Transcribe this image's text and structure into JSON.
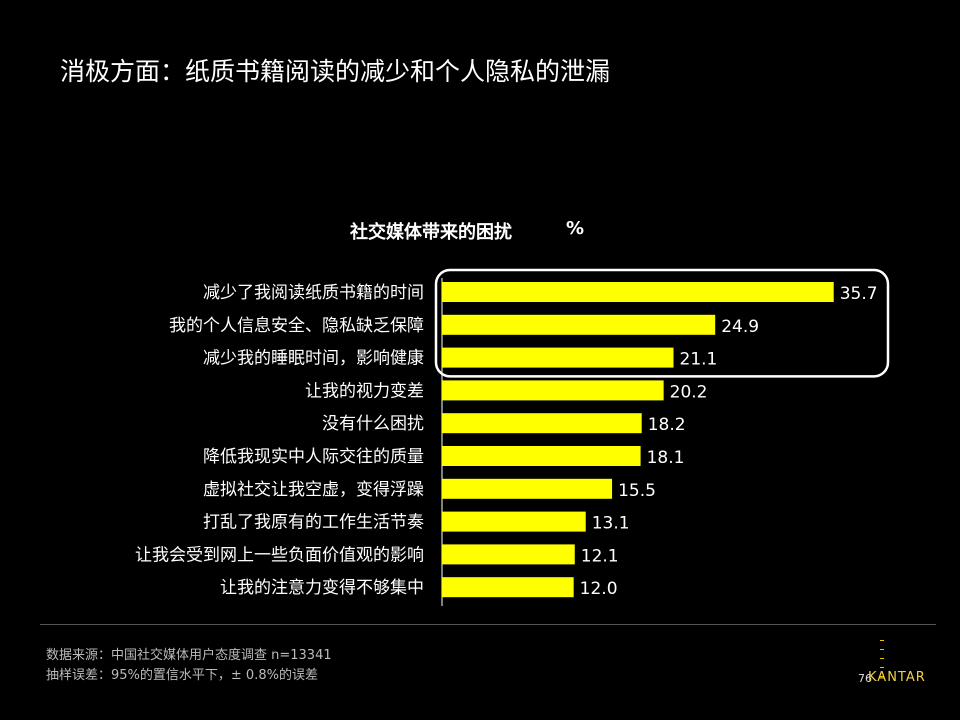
{
  "slide": {
    "title": "消极方面：纸质书籍阅读的减少和个人隐私的泄漏"
  },
  "chart_data": {
    "type": "bar",
    "orientation": "horizontal",
    "title": "社交媒体带来的困扰",
    "unit": "%",
    "categories": [
      "减少了我阅读纸质书籍的时间",
      "我的个人信息安全、隐私缺乏保障",
      "减少我的睡眠时间，影响健康",
      "让我的视力变差",
      "没有什么困扰",
      "降低我现实中人际交往的质量",
      "虚拟社交让我空虚，变得浮躁",
      "打乱了我原有的工作生活节奏",
      "让我会受到网上一些负面价值观的影响",
      "让我的注意力变得不够集中"
    ],
    "values": [
      35.7,
      24.9,
      21.1,
      20.2,
      18.2,
      18.1,
      15.5,
      13.1,
      12.1,
      12.0
    ],
    "value_labels": [
      "35.7",
      "24.9",
      "21.1",
      "20.2",
      "18.2",
      "18.1",
      "15.5",
      "13.1",
      "12.1",
      "12.0"
    ],
    "xlim": [
      0,
      36
    ],
    "grid": false,
    "highlighted_items": 3,
    "colors": {
      "bar": "#FFFF00",
      "highlight_box": "#FFFFFF",
      "background": "#000000"
    }
  },
  "footer": {
    "source": "数据来源：中国社交媒体用户态度调查   n=13341",
    "sampling_error": "抽样误差：95%的置信水平下，±  0.8%的误差",
    "page_number": "76",
    "logo": "KANTAR"
  }
}
